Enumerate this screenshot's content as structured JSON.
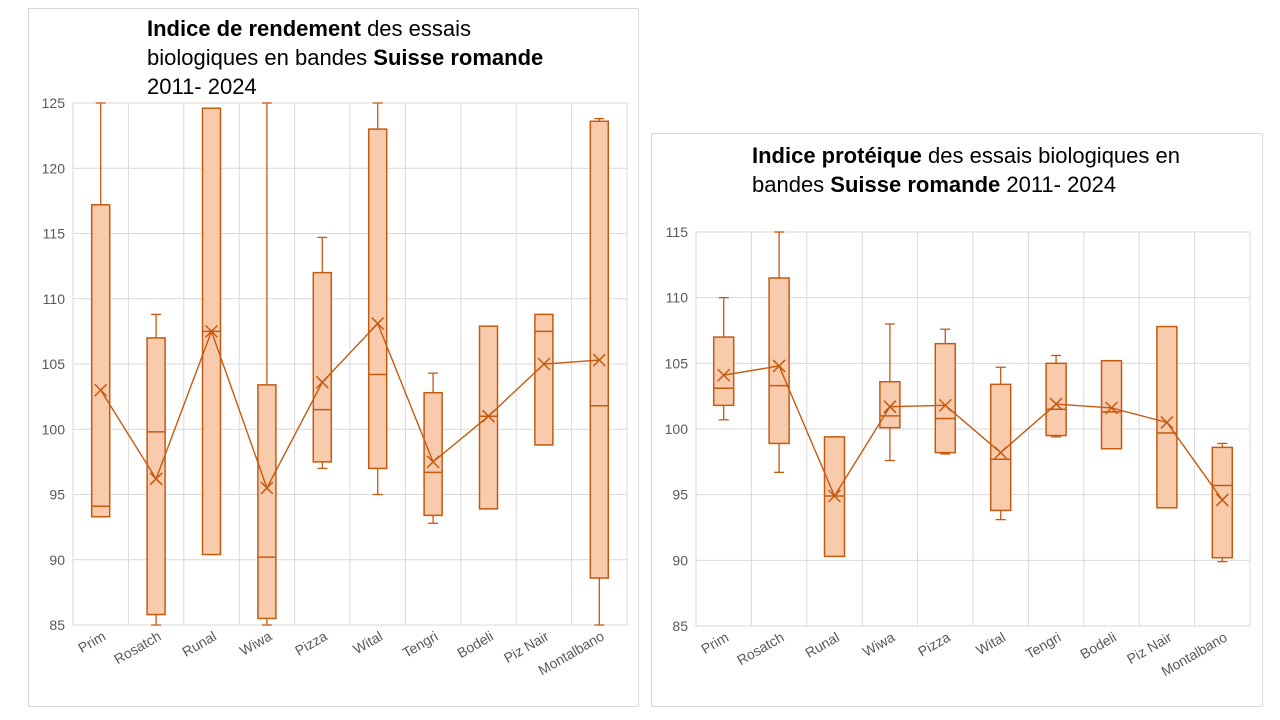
{
  "colors": {
    "box_fill": "#f8cbad",
    "box_stroke": "#c55a11",
    "grid": "#d9d9d9",
    "tick_text": "#595959"
  },
  "chart_data": [
    {
      "type": "box",
      "title_parts": [
        {
          "text": "Indice de rendement",
          "bold": true
        },
        {
          "text": " des essais biologiques en bandes ",
          "bold": false
        },
        {
          "text": "Suisse romande",
          "bold": true
        },
        {
          "text": " 2011- 2024",
          "bold": false
        }
      ],
      "ylim": [
        85,
        125
      ],
      "yticks": [
        85,
        90,
        95,
        100,
        105,
        110,
        115,
        120,
        125
      ],
      "grid": true,
      "categories": [
        "Prim",
        "Rosatch",
        "Runal",
        "Wiwa",
        "Pizza",
        "Wital",
        "Tengri",
        "Bodeli",
        "Piz Nair",
        "Montalbano"
      ],
      "boxes": [
        {
          "min": 93.3,
          "q1": 93.3,
          "median": 94.1,
          "q3": 117.2,
          "max": 125.0,
          "mean": 103.0
        },
        {
          "min": 84.8,
          "q1": 85.8,
          "median": 99.8,
          "q3": 107.0,
          "max": 108.8,
          "mean": 96.2
        },
        {
          "min": 90.4,
          "q1": 90.4,
          "median": 107.5,
          "q3": 124.6,
          "max": 124.6,
          "mean": 107.5
        },
        {
          "min": 84.8,
          "q1": 85.5,
          "median": 90.2,
          "q3": 103.4,
          "max": 125.0,
          "mean": 95.5
        },
        {
          "min": 97.0,
          "q1": 97.5,
          "median": 101.5,
          "q3": 112.0,
          "max": 114.7,
          "mean": 103.6
        },
        {
          "min": 95.0,
          "q1": 97.0,
          "median": 104.2,
          "q3": 123.0,
          "max": 125.0,
          "mean": 108.1
        },
        {
          "min": 92.8,
          "q1": 93.4,
          "median": 96.7,
          "q3": 102.8,
          "max": 104.3,
          "mean": 97.5
        },
        {
          "min": 93.9,
          "q1": 93.9,
          "median": 101.0,
          "q3": 107.9,
          "max": 107.9,
          "mean": 101.0
        },
        {
          "min": 98.8,
          "q1": 98.8,
          "median": 107.5,
          "q3": 108.8,
          "max": 108.8,
          "mean": 105.0
        },
        {
          "min": 84.8,
          "q1": 88.6,
          "median": 101.8,
          "q3": 123.6,
          "max": 123.8,
          "mean": 105.3
        }
      ]
    },
    {
      "type": "box",
      "title_parts": [
        {
          "text": "Indice protéique",
          "bold": true
        },
        {
          "text": " des essais biologiques en bandes ",
          "bold": false
        },
        {
          "text": "Suisse romande",
          "bold": true
        },
        {
          "text": " 2011- 2024",
          "bold": false
        }
      ],
      "ylim": [
        85,
        115
      ],
      "yticks": [
        85,
        90,
        95,
        100,
        105,
        110,
        115
      ],
      "grid": true,
      "categories": [
        "Prim",
        "Rosatch",
        "Runal",
        "Wiwa",
        "Pizza",
        "Wital",
        "Tengri",
        "Bodeli",
        "Piz Nair",
        "Montalbano"
      ],
      "boxes": [
        {
          "min": 100.7,
          "q1": 101.8,
          "median": 103.1,
          "q3": 107.0,
          "max": 110.0,
          "mean": 104.1
        },
        {
          "min": 96.7,
          "q1": 98.9,
          "median": 103.3,
          "q3": 111.5,
          "max": 115.0,
          "mean": 104.8
        },
        {
          "min": 90.3,
          "q1": 90.3,
          "median": 94.9,
          "q3": 99.4,
          "max": 99.4,
          "mean": 94.9
        },
        {
          "min": 97.6,
          "q1": 100.1,
          "median": 101.0,
          "q3": 103.6,
          "max": 108.0,
          "mean": 101.7
        },
        {
          "min": 98.1,
          "q1": 98.2,
          "median": 100.8,
          "q3": 106.5,
          "max": 107.6,
          "mean": 101.8
        },
        {
          "min": 93.1,
          "q1": 93.8,
          "median": 97.7,
          "q3": 103.4,
          "max": 104.7,
          "mean": 98.2
        },
        {
          "min": 99.4,
          "q1": 99.5,
          "median": 101.5,
          "q3": 105.0,
          "max": 105.6,
          "mean": 101.9
        },
        {
          "min": 98.5,
          "q1": 98.5,
          "median": 101.3,
          "q3": 105.2,
          "max": 105.2,
          "mean": 101.6
        },
        {
          "min": 94.0,
          "q1": 94.0,
          "median": 99.7,
          "q3": 107.8,
          "max": 107.8,
          "mean": 100.5
        },
        {
          "min": 89.9,
          "q1": 90.2,
          "median": 95.7,
          "q3": 98.6,
          "max": 98.9,
          "mean": 94.6
        }
      ]
    }
  ]
}
